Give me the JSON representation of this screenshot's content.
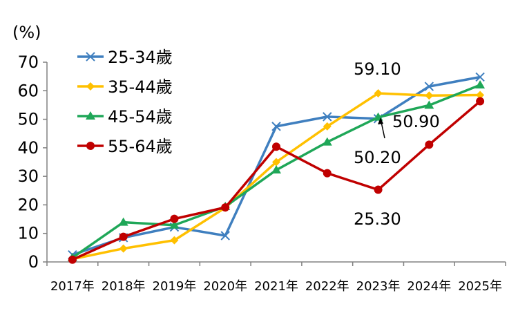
{
  "chart_data": {
    "type": "line",
    "unit_label": "(%)",
    "ylim": [
      0,
      70
    ],
    "yticks": [
      "0",
      "10",
      "20",
      "30",
      "40",
      "50",
      "60",
      "70"
    ],
    "categories": [
      "2017年",
      "2018年",
      "2019年",
      "2020年",
      "2021年",
      "2022年",
      "2023年",
      "2024年",
      "2025年"
    ],
    "grid": false,
    "legend_position": "top-left",
    "series": [
      {
        "name": "25-34歲",
        "color": "#3F7FBF",
        "marker": "x",
        "values": [
          2.5,
          8.5,
          12.2,
          9.2,
          47.5,
          50.9,
          50.2,
          61.5,
          64.8
        ]
      },
      {
        "name": "35-44歲",
        "color": "#FFC000",
        "marker": "diamond",
        "values": [
          1.0,
          4.7,
          7.6,
          19.0,
          35.0,
          47.5,
          59.1,
          58.3,
          58.5
        ]
      },
      {
        "name": "45-54歲",
        "color": "#1FA758",
        "marker": "triangle",
        "values": [
          1.5,
          13.9,
          12.9,
          19.4,
          32.2,
          42.0,
          50.7,
          54.9,
          62.0
        ]
      },
      {
        "name": "55-64歲",
        "color": "#C00000",
        "marker": "circle",
        "values": [
          0.8,
          8.8,
          15.1,
          19.1,
          40.4,
          31.1,
          25.3,
          41.1,
          56.3
        ]
      }
    ],
    "annotations": [
      "59.10",
      "50.90",
      "50.20",
      "25.30"
    ]
  }
}
